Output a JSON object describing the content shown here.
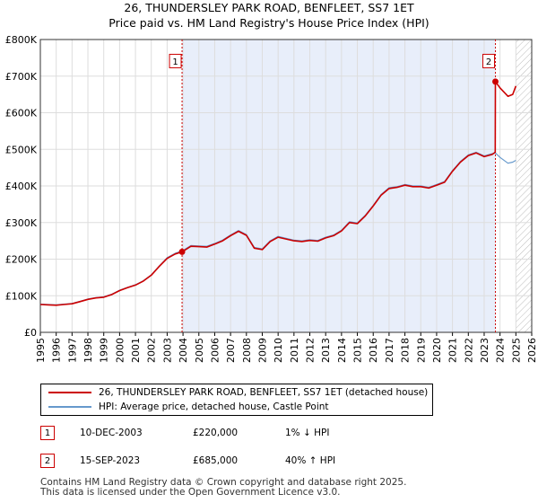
{
  "title_line1": "26, THUNDERSLEY PARK ROAD, BENFLEET, SS7 1ET",
  "title_line2": "Price paid vs. HM Land Registry's House Price Index (HPI)",
  "colors": {
    "price_line": "#cc0000",
    "hpi_line": "#6699cc",
    "shade": "#e8eefa",
    "grid": "#dddddd"
  },
  "legend": {
    "price_label": "26, THUNDERSLEY PARK ROAD, BENFLEET, SS7 1ET (detached house)",
    "hpi_label": "HPI: Average price, detached house, Castle Point"
  },
  "transactions": [
    {
      "num": "1",
      "date": "10-DEC-2003",
      "price": "£220,000",
      "hpi": "1% ↓ HPI"
    },
    {
      "num": "2",
      "date": "15-SEP-2023",
      "price": "£685,000",
      "hpi": "40% ↑ HPI"
    }
  ],
  "footer": {
    "line1": "Contains HM Land Registry data © Crown copyright and database right 2025.",
    "line2": "This data is licensed under the Open Government Licence v3.0."
  },
  "chart_data": {
    "type": "line",
    "title": "26, THUNDERSLEY PARK ROAD, BENFLEET, SS7 1ET",
    "subtitle": "Price paid vs. HM Land Registry's House Price Index (HPI)",
    "xlabel": "",
    "ylabel": "",
    "xlim": [
      1995,
      2026
    ],
    "ylim": [
      0,
      800000
    ],
    "x_ticks": [
      1995,
      1996,
      1997,
      1998,
      1999,
      2000,
      2001,
      2002,
      2003,
      2004,
      2005,
      2006,
      2007,
      2008,
      2009,
      2010,
      2011,
      2012,
      2013,
      2014,
      2015,
      2016,
      2017,
      2018,
      2019,
      2020,
      2021,
      2022,
      2023,
      2024,
      2025,
      2026
    ],
    "y_ticks": [
      {
        "value": 0,
        "label": "£0"
      },
      {
        "value": 100000,
        "label": "£100K"
      },
      {
        "value": 200000,
        "label": "£200K"
      },
      {
        "value": 300000,
        "label": "£300K"
      },
      {
        "value": 400000,
        "label": "£400K"
      },
      {
        "value": 500000,
        "label": "£500K"
      },
      {
        "value": 600000,
        "label": "£600K"
      },
      {
        "value": 700000,
        "label": "£700K"
      },
      {
        "value": 800000,
        "label": "£800K"
      }
    ],
    "grid": true,
    "shaded_range": [
      2003.94,
      2023.71
    ],
    "hatched_from": 2025.0,
    "annotations": [
      {
        "label": "1",
        "x": 2003.94,
        "y": 220000,
        "box_y": 740000
      },
      {
        "label": "2",
        "x": 2023.71,
        "y": 685000,
        "box_y": 740000
      }
    ],
    "series": [
      {
        "name": "26, THUNDERSLEY PARK ROAD, BENFLEET, SS7 1ET (detached house)",
        "x": [
          1995,
          1995.5,
          1996,
          1996.5,
          1997,
          1997.5,
          1998,
          1998.5,
          1999,
          1999.5,
          2000,
          2000.5,
          2001,
          2001.5,
          2002,
          2002.5,
          2003,
          2003.5,
          2003.94,
          2004.5,
          2005,
          2005.5,
          2006,
          2006.5,
          2007,
          2007.5,
          2008,
          2008.5,
          2009,
          2009.5,
          2010,
          2010.5,
          2011,
          2011.5,
          2012,
          2012.5,
          2013,
          2013.5,
          2014,
          2014.5,
          2015,
          2015.5,
          2016,
          2016.5,
          2017,
          2017.5,
          2018,
          2018.5,
          2019,
          2019.5,
          2020,
          2020.5,
          2021,
          2021.5,
          2022,
          2022.5,
          2023,
          2023.5,
          2023.7,
          2023.71,
          2024,
          2024.5,
          2024.8,
          2025
        ],
        "values": [
          76000,
          75000,
          74000,
          76000,
          78000,
          84000,
          90000,
          94000,
          96000,
          103000,
          114000,
          122000,
          129000,
          140000,
          156000,
          180000,
          202000,
          214000,
          220000,
          235000,
          234000,
          233000,
          241000,
          250000,
          264000,
          276000,
          265000,
          230000,
          226000,
          248000,
          260000,
          255000,
          250000,
          248000,
          251000,
          249000,
          258000,
          264000,
          277000,
          300000,
          297000,
          318000,
          345000,
          375000,
          393000,
          396000,
          402000,
          398000,
          398000,
          394000,
          402000,
          410000,
          440000,
          465000,
          483000,
          490000,
          480000,
          486000,
          492000,
          685000,
          668000,
          645000,
          650000,
          673000
        ]
      },
      {
        "name": "HPI: Average price, detached house, Castle Point",
        "x": [
          1995,
          1995.5,
          1996,
          1996.5,
          1997,
          1997.5,
          1998,
          1998.5,
          1999,
          1999.5,
          2000,
          2000.5,
          2001,
          2001.5,
          2002,
          2002.5,
          2003,
          2003.5,
          2003.94,
          2004.5,
          2005,
          2005.5,
          2006,
          2006.5,
          2007,
          2007.5,
          2008,
          2008.5,
          2009,
          2009.5,
          2010,
          2010.5,
          2011,
          2011.5,
          2012,
          2012.5,
          2013,
          2013.5,
          2014,
          2014.5,
          2015,
          2015.5,
          2016,
          2016.5,
          2017,
          2017.5,
          2018,
          2018.5,
          2019,
          2019.5,
          2020,
          2020.5,
          2021,
          2021.5,
          2022,
          2022.5,
          2023,
          2023.5,
          2023.71,
          2024,
          2024.5,
          2024.8,
          2025
        ],
        "values": [
          77000,
          76000,
          75000,
          77000,
          79000,
          85000,
          91000,
          95000,
          97000,
          104000,
          115000,
          123000,
          130000,
          141000,
          157000,
          181000,
          204000,
          216000,
          222000,
          237000,
          236000,
          235000,
          243000,
          252000,
          266000,
          278000,
          267000,
          232000,
          228000,
          250000,
          262000,
          257000,
          252000,
          250000,
          253000,
          251000,
          260000,
          266000,
          279000,
          302000,
          299000,
          320000,
          347000,
          377000,
          395000,
          398000,
          404000,
          400000,
          400000,
          396000,
          404000,
          412000,
          442000,
          467000,
          485000,
          492000,
          482000,
          488000,
          490000,
          478000,
          462000,
          465000,
          470000
        ]
      }
    ]
  }
}
